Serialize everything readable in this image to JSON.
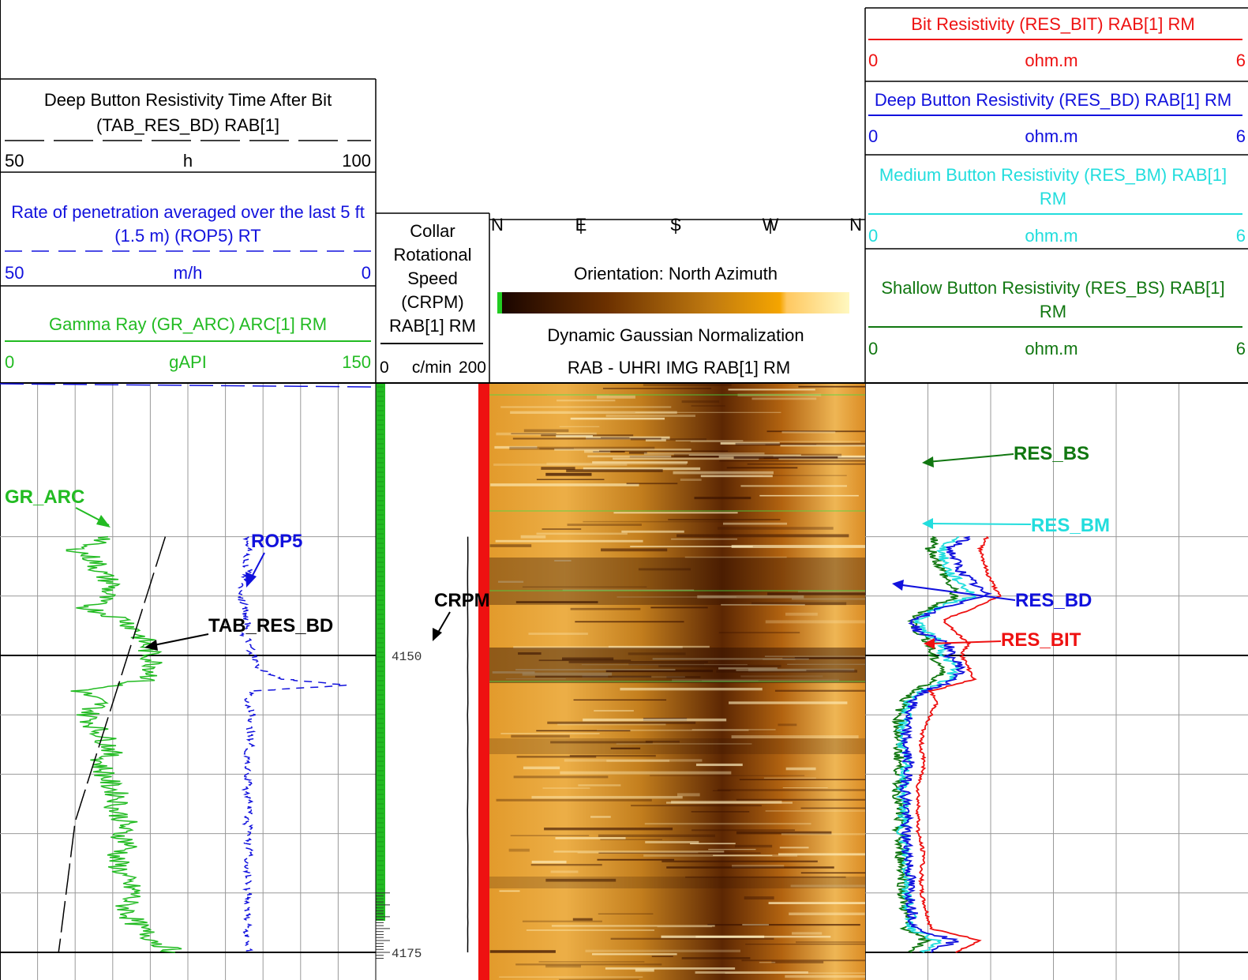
{
  "headers": {
    "tab_res_bd": {
      "title_line1": "Deep Button Resistivity Time After Bit",
      "title_line2": "(TAB_RES_BD) RAB[1]",
      "min": "50",
      "unit": "h",
      "max": "100"
    },
    "rop5": {
      "title_line1": "Rate of penetration averaged over the last 5 ft",
      "title_line2": "(1.5 m) (ROP5) RT",
      "min": "50",
      "unit": "m/h",
      "max": "0"
    },
    "gr_arc": {
      "title": "Gamma Ray (GR_ARC) ARC[1] RM",
      "min": "0",
      "unit": "gAPI",
      "max": "150"
    },
    "crpm": {
      "title_lines": [
        "Collar",
        "Rotational",
        "Speed",
        "(CRPM)",
        "RAB[1] RM"
      ],
      "min": "0",
      "unit": "c/min",
      "max": "200"
    },
    "image": {
      "compass": [
        "N",
        "E",
        "S",
        "W",
        "N"
      ],
      "orientation": "Orientation: North Azimuth",
      "normalization": "Dynamic Gaussian Normalization",
      "title": "RAB - UHRI IMG RAB[1] RM"
    },
    "res_bit": {
      "title": "Bit Resistivity (RES_BIT) RAB[1] RM",
      "min": "0",
      "unit": "ohm.m",
      "max": "6"
    },
    "res_bd": {
      "title": "Deep Button Resistivity (RES_BD) RAB[1] RM",
      "min": "0",
      "unit": "ohm.m",
      "max": "6"
    },
    "res_bm": {
      "title_line1": "Medium Button Resistivity (RES_BM) RAB[1]",
      "title_line2": "RM",
      "min": "0",
      "unit": "ohm.m",
      "max": "6"
    },
    "res_bs": {
      "title_line1": "Shallow Button Resistivity (RES_BS) RAB[1]",
      "title_line2": "RM",
      "min": "0",
      "unit": "ohm.m",
      "max": "6"
    }
  },
  "depth_labels": [
    "4150",
    "4175"
  ],
  "annotations": {
    "gr_arc": "GR_ARC",
    "rop5": "ROP5",
    "tab_res_bd": "TAB_RES_BD",
    "crpm": "CRPM",
    "res_bs": "RES_BS",
    "res_bm": "RES_BM",
    "res_bd": "RES_BD",
    "res_bit": "RES_BIT"
  },
  "colors": {
    "gr_arc": "#22bb22",
    "rop5": "#1111dd",
    "tab_res_bd": "#000000",
    "crpm": "#000000",
    "res_bit": "#ee1111",
    "res_bd": "#1111dd",
    "res_bm": "#22dddd",
    "res_bs": "#117711",
    "image_dark": "#2a0c00",
    "image_mid": "#b8680a",
    "image_light": "#fff0b0"
  },
  "chart_data": {
    "type": "line",
    "depth_range": [
      4140,
      4175
    ],
    "tracks": [
      {
        "name": "left-curves",
        "series": [
          {
            "name": "GR_ARC",
            "unit": "gAPI",
            "range": [
              0,
              150
            ],
            "depth": [
              4140,
              4141,
              4142,
              4143,
              4144,
              4145,
              4146,
              4147,
              4148,
              4149,
              4150,
              4151,
              4152,
              4153,
              4154,
              4155,
              4156,
              4157,
              4158,
              4159,
              4160,
              4161,
              4162,
              4163,
              4164,
              4165,
              4166,
              4167,
              4168,
              4169,
              4170,
              4171,
              4172,
              4173,
              4174,
              4175
            ],
            "values": [
              45,
              30,
              38,
              40,
              45,
              42,
              35,
              50,
              55,
              58,
              60,
              62,
              60,
              32,
              40,
              35,
              38,
              42,
              45,
              40,
              42,
              44,
              48,
              46,
              50,
              48,
              52,
              46,
              48,
              50,
              54,
              50,
              52,
              56,
              62,
              70
            ]
          },
          {
            "name": "TAB_RES_BD",
            "unit": "h",
            "range": [
              50,
              100
            ],
            "depth": [
              4140,
              4142,
              4143,
              4144,
              4145,
              4146,
              4147,
              4148,
              4149,
              4150,
              4151,
              4152,
              4153,
              4154,
              4155,
              4156,
              4157,
              4158,
              4159,
              4160,
              4161,
              4162,
              4163,
              4164,
              4165,
              4166,
              4167,
              4168,
              4169,
              4170,
              4171,
              4172,
              4173,
              4174,
              4175
            ],
            "values": [
              72,
              71,
              70.5,
              70,
              69.5,
              69,
              68.5,
              68,
              67.5,
              67,
              66.5,
              66,
              65.5,
              65,
              64.5,
              64,
              63.5,
              63,
              62.5,
              62,
              61.5,
              61,
              60.5,
              60,
              59.8,
              59.6,
              59.4,
              59.2,
              59,
              58.8,
              58.6,
              58.4,
              58.2,
              58,
              57.8
            ]
          },
          {
            "name": "ROP5",
            "unit": "m/h",
            "range": [
              50,
              0
            ],
            "depth": [
              4140,
              4141,
              4142,
              4143,
              4144,
              4145,
              4146,
              4147,
              4148,
              4149,
              4150,
              4151,
              4152,
              4152.5,
              4153,
              4154,
              4155,
              4156,
              4157,
              4158,
              4159,
              4160,
              4161,
              4162,
              4163,
              4164,
              4165,
              4166,
              4167,
              4168,
              4169,
              4170,
              4171,
              4172,
              4173,
              4174,
              4175
            ],
            "values": [
              17,
              17,
              17.5,
              17,
              17.5,
              18,
              17.5,
              17,
              17.5,
              17,
              16.5,
              16,
              12,
              4,
              16.5,
              17,
              16.5,
              17,
              16.5,
              17,
              17,
              17,
              17,
              17,
              17,
              17,
              17,
              17,
              17,
              17,
              17,
              17,
              17,
              17,
              17,
              17,
              17
            ]
          }
        ]
      },
      {
        "name": "crpm",
        "series": [
          {
            "name": "CRPM",
            "unit": "c/min",
            "range": [
              0,
              200
            ],
            "depth": [
              4140,
              4150,
              4160,
              4170,
              4175
            ],
            "values": [
              170,
              170,
              170,
              170,
              170
            ]
          }
        ]
      },
      {
        "name": "resistivity",
        "series": [
          {
            "name": "RES_BIT",
            "unit": "ohm.m",
            "range": [
              0,
              6
            ],
            "depth": [
              4140,
              4141,
              4142,
              4143,
              4144,
              4145,
              4146,
              4147,
              4148,
              4149,
              4150,
              4151,
              4152,
              4153,
              4154,
              4155,
              4156,
              4157,
              4158,
              4159,
              4160,
              4161,
              4162,
              4163,
              4164,
              4165,
              4166,
              4167,
              4168,
              4169,
              4170,
              4171,
              4172,
              4173,
              4174,
              4175
            ],
            "values": [
              1.9,
              1.8,
              1.85,
              1.9,
              2.0,
              2.1,
              1.7,
              1.2,
              1.4,
              1.6,
              1.5,
              1.6,
              1.7,
              1.0,
              1.1,
              1.0,
              0.9,
              0.85,
              0.85,
              0.9,
              0.85,
              0.8,
              0.8,
              0.8,
              0.8,
              0.8,
              0.85,
              0.9,
              0.85,
              0.85,
              0.85,
              0.9,
              0.95,
              1.0,
              1.8,
              1.4
            ]
          },
          {
            "name": "RES_BD",
            "unit": "ohm.m",
            "range": [
              0,
              6
            ],
            "depth": [
              4140,
              4141,
              4142,
              4143,
              4144,
              4145,
              4146,
              4147,
              4148,
              4149,
              4150,
              4151,
              4152,
              4153,
              4154,
              4155,
              4156,
              4157,
              4158,
              4159,
              4160,
              4161,
              4162,
              4163,
              4164,
              4165,
              4166,
              4167,
              4168,
              4169,
              4170,
              4171,
              4172,
              4173,
              4174,
              4175
            ],
            "values": [
              1.6,
              1.3,
              1.4,
              1.5,
              1.7,
              1.9,
              1.2,
              0.7,
              0.8,
              1.3,
              1.3,
              1.5,
              1.4,
              0.9,
              0.7,
              0.65,
              0.6,
              0.6,
              0.6,
              0.65,
              0.62,
              0.6,
              0.6,
              0.62,
              0.6,
              0.6,
              0.62,
              0.65,
              0.66,
              0.68,
              0.66,
              0.7,
              0.72,
              0.75,
              1.4,
              1.0
            ]
          },
          {
            "name": "RES_BM",
            "unit": "ohm.m",
            "range": [
              0,
              6
            ],
            "depth": [
              4140,
              4141,
              4142,
              4143,
              4144,
              4145,
              4146,
              4147,
              4148,
              4149,
              4150,
              4151,
              4152,
              4153,
              4154,
              4155,
              4156,
              4157,
              4158,
              4159,
              4160,
              4161,
              4162,
              4163,
              4164,
              4165,
              4166,
              4167,
              4168,
              4169,
              4170,
              4171,
              4172,
              4173,
              4174,
              4175
            ],
            "values": [
              1.4,
              1.2,
              1.2,
              1.3,
              1.5,
              1.7,
              1.1,
              0.8,
              0.9,
              1.2,
              1.2,
              1.4,
              1.3,
              0.85,
              0.65,
              0.6,
              0.55,
              0.55,
              0.55,
              0.6,
              0.58,
              0.55,
              0.55,
              0.58,
              0.55,
              0.55,
              0.58,
              0.6,
              0.62,
              0.64,
              0.62,
              0.65,
              0.68,
              0.7,
              1.1,
              0.9
            ]
          },
          {
            "name": "RES_BS",
            "unit": "ohm.m",
            "range": [
              0,
              6
            ],
            "depth": [
              4140,
              4141,
              4142,
              4143,
              4144,
              4145,
              4146,
              4147,
              4148,
              4149,
              4150,
              4151,
              4152,
              4153,
              4154,
              4155,
              4156,
              4157,
              4158,
              4159,
              4160,
              4161,
              4162,
              4163,
              4164,
              4165,
              4166,
              4167,
              4168,
              4169,
              4170,
              4171,
              4172,
              4173,
              4174,
              4175
            ],
            "values": [
              1.1,
              1.0,
              1.1,
              1.2,
              1.3,
              1.4,
              1.0,
              0.7,
              0.8,
              1.0,
              1.0,
              1.2,
              1.1,
              0.75,
              0.55,
              0.5,
              0.48,
              0.48,
              0.48,
              0.5,
              0.5,
              0.48,
              0.48,
              0.5,
              0.48,
              0.48,
              0.5,
              0.52,
              0.55,
              0.56,
              0.55,
              0.58,
              0.6,
              0.62,
              0.9,
              0.7
            ]
          }
        ]
      }
    ]
  }
}
